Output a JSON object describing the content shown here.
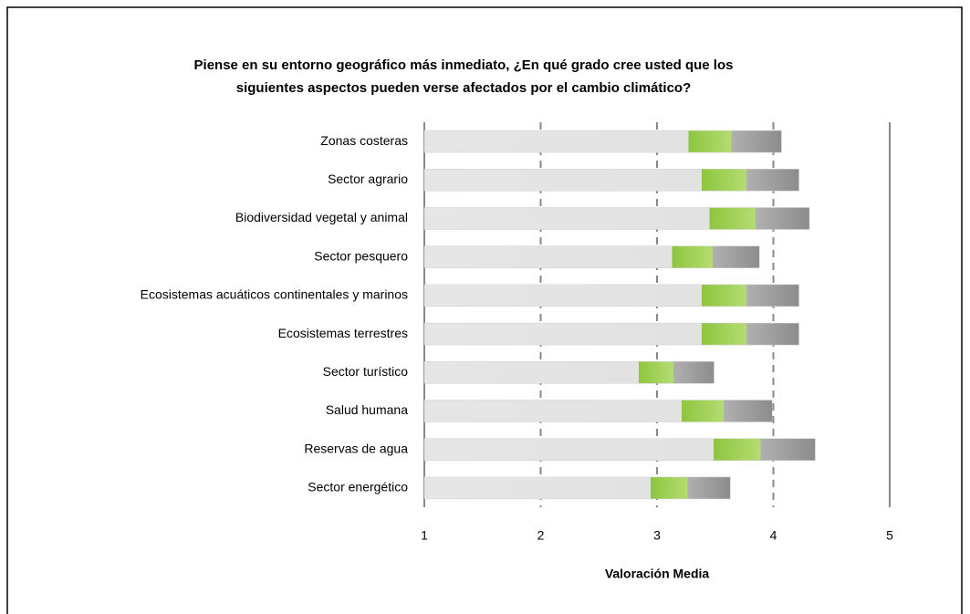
{
  "chart_data": {
    "type": "barh",
    "title": [
      "Piense en su entorno geográfico más inmediato, ¿En qué grado cree usted que los",
      "siguientes aspectos pueden verse afectados por el cambio climático?"
    ],
    "x_label": "Valoración Media",
    "categories": [
      "Zonas costeras",
      "Sector agrario",
      "Biodiversidad vegetal y animal",
      "Sector pesquero",
      "Ecosistemas acuáticos continentales y marinos",
      "Ecosistemas terrestres",
      "Sector turístico",
      "Salud humana",
      "Reservas de agua",
      "Sector energético"
    ],
    "values": [
      4.07,
      4.22,
      4.31,
      3.88,
      4.22,
      4.22,
      3.49,
      3.99,
      4.36,
      3.63
    ],
    "xlim": [
      1,
      5
    ],
    "xticks": [
      1,
      2,
      3,
      4,
      5
    ],
    "grid": true
  }
}
